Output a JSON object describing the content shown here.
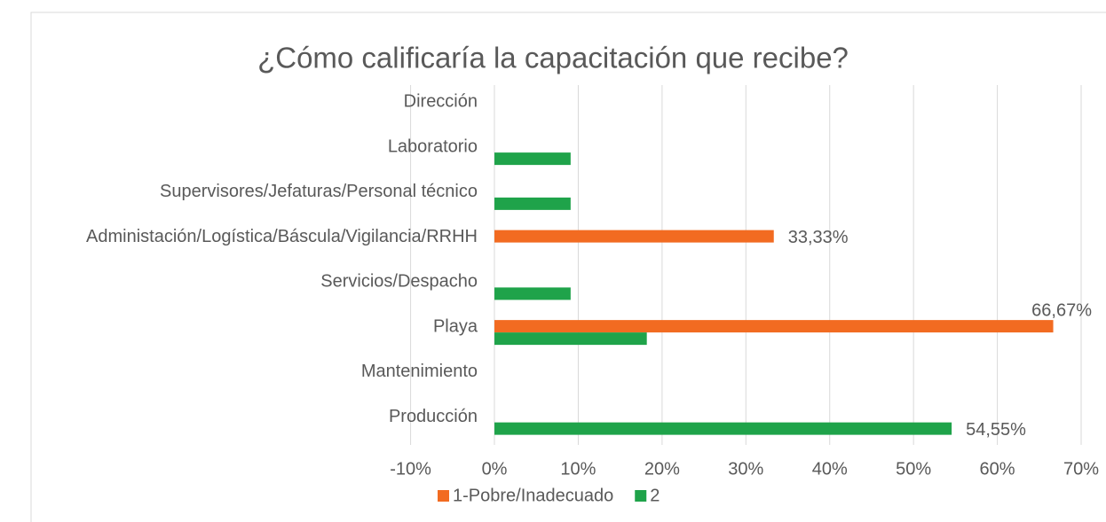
{
  "chart_data": {
    "type": "hbar",
    "title": "¿Cómo calificaría la capacitación que recibe?",
    "categories": [
      "Dirección",
      "Laboratorio",
      "Supervisores/Jefaturas/Personal técnico",
      "Administación/Logística/Báscula/Vigilancia/RRHH",
      "Servicios/Despacho",
      "Playa",
      "Mantenimiento",
      "Producción"
    ],
    "series": [
      {
        "name": "1-Pobre/Inadecuado",
        "color": "#f26b21",
        "values": [
          null,
          null,
          null,
          33.33,
          null,
          66.67,
          null,
          null
        ],
        "value_labels": [
          null,
          null,
          null,
          "33,33%",
          null,
          "66,67%",
          null,
          null
        ]
      },
      {
        "name": "2",
        "color": "#1fa34a",
        "values": [
          null,
          9.09,
          9.09,
          null,
          9.09,
          18.18,
          null,
          54.55
        ],
        "value_labels": [
          null,
          null,
          null,
          null,
          null,
          null,
          null,
          "54,55%"
        ]
      }
    ],
    "xlim": [
      -10,
      70
    ],
    "xticks": [
      {
        "value": -10,
        "label": "-10%"
      },
      {
        "value": 0,
        "label": "0%"
      },
      {
        "value": 10,
        "label": "10%"
      },
      {
        "value": 20,
        "label": "20%"
      },
      {
        "value": 30,
        "label": "30%"
      },
      {
        "value": 40,
        "label": "40%"
      },
      {
        "value": 50,
        "label": "50%"
      },
      {
        "value": 60,
        "label": "60%"
      },
      {
        "value": 70,
        "label": "70%"
      }
    ],
    "grid": true,
    "legend": "bottom"
  }
}
